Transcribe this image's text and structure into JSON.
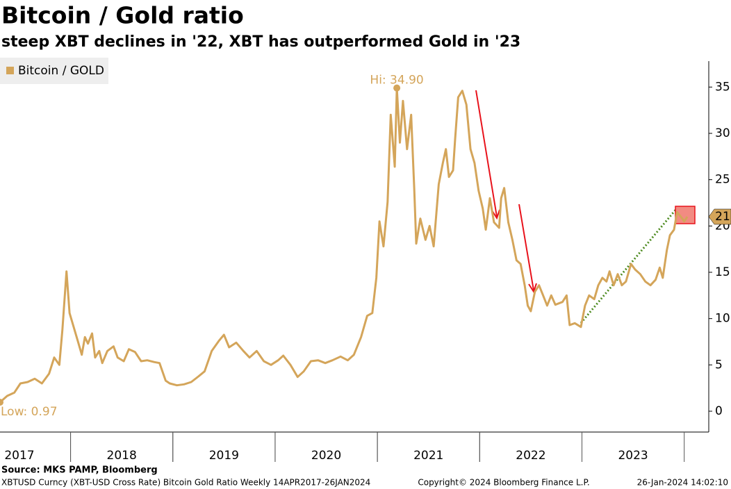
{
  "chart_data": {
    "type": "line",
    "title": "Bitcoin / Gold ratio",
    "subtitle": "steep XBT declines in '22, XBT has outperformed Gold in '23",
    "x": [
      2017.31,
      2017.38,
      2017.45,
      2017.51,
      2017.58,
      2017.65,
      2017.72,
      2017.79,
      2017.84,
      2017.89,
      2017.92,
      2017.96,
      2017.99,
      2018.03,
      2018.07,
      2018.11,
      2018.14,
      2018.17,
      2018.21,
      2018.24,
      2018.28,
      2018.31,
      2018.36,
      2018.42,
      2018.46,
      2018.52,
      2018.57,
      2018.63,
      2018.69,
      2018.75,
      2018.82,
      2018.87,
      2018.93,
      2018.97,
      2019.04,
      2019.11,
      2019.18,
      2019.25,
      2019.31,
      2019.38,
      2019.45,
      2019.5,
      2019.55,
      2019.62,
      2019.69,
      2019.75,
      2019.82,
      2019.89,
      2019.96,
      2020.03,
      2020.08,
      2020.15,
      2020.22,
      2020.28,
      2020.35,
      2020.42,
      2020.49,
      2020.56,
      2020.64,
      2020.71,
      2020.77,
      2020.84,
      2020.9,
      2020.95,
      2020.99,
      2021.02,
      2021.06,
      2021.1,
      2021.13,
      2021.17,
      2021.19,
      2021.22,
      2021.25,
      2021.29,
      2021.33,
      2021.36,
      2021.38,
      2021.42,
      2021.47,
      2021.51,
      2021.55,
      2021.6,
      2021.64,
      2021.67,
      2021.7,
      2021.74,
      2021.76,
      2021.79,
      2021.83,
      2021.87,
      2021.91,
      2021.95,
      2021.99,
      2022.03,
      2022.06,
      2022.1,
      2022.14,
      2022.19,
      2022.21,
      2022.24,
      2022.28,
      2022.32,
      2022.36,
      2022.4,
      2022.44,
      2022.47,
      2022.5,
      2022.54,
      2022.58,
      2022.62,
      2022.66,
      2022.7,
      2022.74,
      2022.81,
      2022.85,
      2022.88,
      2022.93,
      2022.99,
      2023.03,
      2023.07,
      2023.12,
      2023.16,
      2023.2,
      2023.24,
      2023.27,
      2023.31,
      2023.35,
      2023.39,
      2023.43,
      2023.48,
      2023.52,
      2023.57,
      2023.62,
      2023.67,
      2023.72,
      2023.76,
      2023.79,
      2023.83,
      2023.86,
      2023.9,
      2023.93,
      2023.96,
      2024.0,
      2024.03
    ],
    "series": [
      {
        "name": "Bitcoin / GOLD",
        "color": "#d4a55a",
        "values": [
          0.97,
          1.65,
          2.0,
          3.0,
          3.15,
          3.5,
          3.0,
          4.05,
          5.8,
          5.0,
          8.8,
          15.1,
          10.6,
          9.1,
          7.6,
          6.1,
          8.0,
          7.3,
          8.4,
          5.8,
          6.5,
          5.2,
          6.5,
          7.0,
          5.8,
          5.4,
          6.7,
          6.4,
          5.4,
          5.5,
          5.3,
          5.2,
          3.3,
          3.0,
          2.8,
          2.9,
          3.15,
          3.75,
          4.3,
          6.5,
          7.6,
          8.25,
          6.9,
          7.4,
          6.5,
          5.8,
          6.5,
          5.4,
          5.0,
          5.5,
          6.0,
          5.0,
          3.7,
          4.3,
          5.4,
          5.5,
          5.2,
          5.5,
          5.9,
          5.5,
          6.1,
          8.0,
          10.3,
          10.6,
          14.4,
          20.5,
          17.8,
          22.6,
          32.0,
          26.4,
          34.9,
          29.0,
          33.5,
          28.3,
          32.0,
          24.1,
          18.1,
          20.8,
          18.5,
          20.0,
          17.8,
          24.5,
          26.8,
          28.3,
          25.3,
          26.0,
          29.4,
          33.9,
          34.6,
          33.1,
          28.3,
          26.8,
          23.8,
          21.9,
          19.6,
          23.0,
          20.4,
          19.8,
          23.0,
          24.1,
          20.4,
          18.5,
          16.3,
          15.9,
          13.6,
          11.4,
          10.8,
          12.9,
          13.6,
          12.5,
          11.4,
          12.5,
          11.5,
          11.8,
          12.5,
          9.3,
          9.5,
          9.1,
          11.4,
          12.5,
          12.1,
          13.6,
          14.4,
          14.0,
          15.1,
          13.6,
          14.8,
          13.6,
          14.0,
          15.9,
          15.3,
          14.8,
          14.0,
          13.6,
          14.2,
          15.5,
          14.4,
          17.4,
          19.0,
          19.6,
          21.5,
          21.1,
          20.5,
          21.0
        ]
      }
    ],
    "xlim": [
      2017.31,
      2024.24
    ],
    "xticks": [
      {
        "value": 2017.5,
        "label": "2017"
      },
      {
        "value": 2018.5,
        "label": "2018"
      },
      {
        "value": 2019.5,
        "label": "2019"
      },
      {
        "value": 2020.5,
        "label": "2020"
      },
      {
        "value": 2021.5,
        "label": "2021"
      },
      {
        "value": 2022.5,
        "label": "2022"
      },
      {
        "value": 2023.5,
        "label": "2023"
      }
    ],
    "ylim": [
      -2.25,
      37.8
    ],
    "yticks": [
      0,
      5,
      10,
      15,
      20,
      25,
      30,
      35
    ],
    "annotations": [
      {
        "text": "Hi: 34.90",
        "x": 2021.19,
        "y": 34.9
      },
      {
        "text": "Low: 0.97",
        "x": 2017.31,
        "y": 0.97
      }
    ],
    "last_value": 21,
    "source": "Source: MKS PAMP, Bloomberg",
    "footer_left": "XBTUSD Curncy (XBT-USD Cross Rate) Bitcoin Gold Ratio  Weekly 14APR2017-26JAN2024",
    "copyright": "Copyright© 2024 Bloomberg Finance L.P.",
    "timestamp": "26-Jan-2024 14:02:10"
  }
}
